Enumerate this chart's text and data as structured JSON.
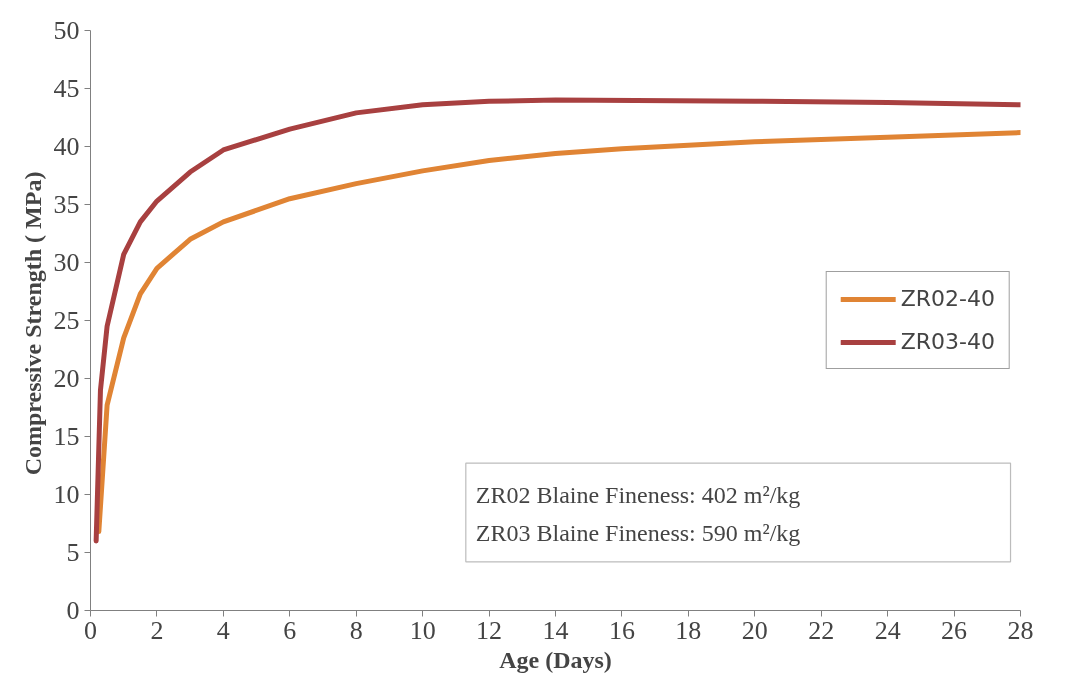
{
  "chart_data": {
    "type": "line",
    "xlabel": "Age (Days)",
    "ylabel": "Compressive  Strength ( MPa)",
    "xlim": [
      0,
      28
    ],
    "xticks": [
      0,
      2,
      4,
      6,
      8,
      10,
      12,
      14,
      16,
      18,
      20,
      22,
      24,
      26,
      28
    ],
    "ylim": [
      0,
      50
    ],
    "yticks": [
      0,
      5,
      10,
      15,
      20,
      25,
      30,
      35,
      40,
      45,
      50
    ],
    "grid": false,
    "legend": "right",
    "marker": "none",
    "line_style": "solid",
    "annotations": [
      "ZR02 Blaine  Fineness: 402 m²/kg",
      "ZR03 Blaine  Fineness: 590 m²/kg"
    ],
    "series": [
      {
        "name": "ZR02-40",
        "color": "#e08434",
        "x": [
          0.25,
          0.5,
          1,
          1.5,
          2,
          3,
          4,
          6,
          8,
          10,
          12,
          14,
          16,
          20,
          24,
          28
        ],
        "values": [
          6.8,
          17.7,
          23.5,
          27.3,
          29.5,
          32,
          33.5,
          35.5,
          36.8,
          37.9,
          38.8,
          39.4,
          39.8,
          40.4,
          40.8,
          41.2
        ]
      },
      {
        "name": "ZR03-40",
        "color": "#a84040",
        "x": [
          0.17,
          0.3,
          0.5,
          1,
          1.5,
          2,
          3,
          4,
          6,
          8,
          10,
          12,
          14,
          20,
          24,
          28
        ],
        "values": [
          6.0,
          19,
          24.5,
          30.7,
          33.5,
          35.3,
          37.8,
          39.7,
          41.5,
          42.9,
          43.6,
          43.9,
          44.0,
          43.9,
          43.8,
          43.6
        ]
      }
    ]
  }
}
